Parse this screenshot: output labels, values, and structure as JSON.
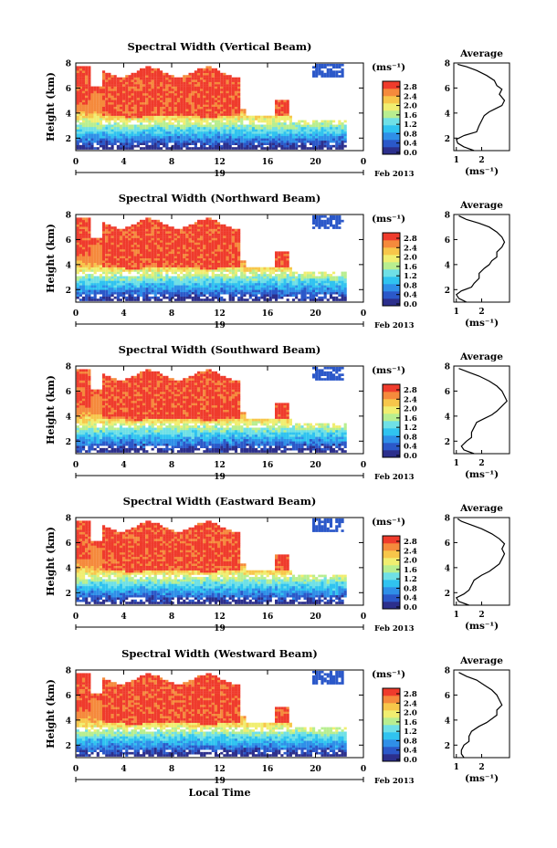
{
  "chart_data": {
    "type": "heatmap",
    "shared": {
      "ylabel": "Height (km)",
      "y_ticks": [
        "2",
        "4",
        "6",
        "8"
      ],
      "ylim": [
        1,
        8
      ],
      "x_ticks": [
        "0",
        "4",
        "8",
        "12",
        "16",
        "20",
        "0"
      ],
      "xlim": [
        0,
        24
      ],
      "day_label": "19",
      "date_label": "Feb 2013",
      "xlabel": "Local Time",
      "colorbar_unit": "(ms⁻¹)",
      "colorbar_ticks": [
        "2.8",
        "2.4",
        "2.0",
        "1.6",
        "1.2",
        "0.8",
        "0.4",
        "0.0"
      ],
      "colorbar_range": [
        0,
        3.0
      ],
      "colors": [
        "#2c2f8c",
        "#2b58c9",
        "#2f8fe8",
        "#30c3f0",
        "#6fe0e6",
        "#b8ee90",
        "#f0ee70",
        "#f7c64a",
        "#f58a3c",
        "#ef3b2c"
      ],
      "avg_title": "Average",
      "avg_unit": "(ms⁻¹)"
    },
    "panels": [
      {
        "title": "Spectral Width (Vertical Beam)",
        "avg_x_ticks": [
          "1",
          "2"
        ],
        "avg_profile": [
          [
            1.7,
            1.0
          ],
          [
            1.3,
            1.3
          ],
          [
            1.05,
            1.6
          ],
          [
            1.0,
            1.9
          ],
          [
            1.3,
            2.2
          ],
          [
            1.8,
            2.5
          ],
          [
            1.9,
            3.0
          ],
          [
            2.0,
            3.4
          ],
          [
            2.1,
            3.8
          ],
          [
            2.3,
            4.1
          ],
          [
            2.5,
            4.3
          ],
          [
            2.8,
            4.6
          ],
          [
            2.9,
            5.0
          ],
          [
            2.7,
            5.5
          ],
          [
            2.8,
            5.9
          ],
          [
            2.6,
            6.2
          ],
          [
            2.5,
            6.6
          ],
          [
            2.2,
            7.0
          ],
          [
            1.8,
            7.4
          ],
          [
            1.4,
            7.7
          ],
          [
            1.05,
            7.9
          ]
        ]
      },
      {
        "title": "Spectral Width (Northward Beam)",
        "avg_x_ticks": [
          "1",
          "2"
        ],
        "avg_profile": [
          [
            1.4,
            1.0
          ],
          [
            1.1,
            1.3
          ],
          [
            1.0,
            1.6
          ],
          [
            1.2,
            1.9
          ],
          [
            1.6,
            2.2
          ],
          [
            1.7,
            2.5
          ],
          [
            1.9,
            2.9
          ],
          [
            1.9,
            3.3
          ],
          [
            2.1,
            3.7
          ],
          [
            2.3,
            4.0
          ],
          [
            2.4,
            4.3
          ],
          [
            2.6,
            4.6
          ],
          [
            2.6,
            5.0
          ],
          [
            2.8,
            5.4
          ],
          [
            2.9,
            5.8
          ],
          [
            2.8,
            6.2
          ],
          [
            2.6,
            6.6
          ],
          [
            2.3,
            7.0
          ],
          [
            1.9,
            7.3
          ],
          [
            1.4,
            7.6
          ],
          [
            1.1,
            7.9
          ]
        ]
      },
      {
        "title": "Spectral Width (Southward Beam)",
        "avg_x_ticks": [
          "1",
          "2"
        ],
        "avg_profile": [
          [
            1.7,
            1.0
          ],
          [
            1.3,
            1.3
          ],
          [
            1.2,
            1.6
          ],
          [
            1.4,
            2.0
          ],
          [
            1.6,
            2.3
          ],
          [
            1.6,
            2.7
          ],
          [
            1.7,
            3.1
          ],
          [
            1.8,
            3.5
          ],
          [
            2.1,
            3.8
          ],
          [
            2.4,
            4.1
          ],
          [
            2.6,
            4.4
          ],
          [
            2.8,
            4.8
          ],
          [
            3.0,
            5.2
          ],
          [
            2.9,
            5.6
          ],
          [
            2.8,
            6.0
          ],
          [
            2.6,
            6.4
          ],
          [
            2.3,
            6.8
          ],
          [
            1.9,
            7.2
          ],
          [
            1.5,
            7.5
          ],
          [
            1.1,
            7.8
          ]
        ]
      },
      {
        "title": "Spectral Width (Eastward Beam)",
        "avg_x_ticks": [
          "1",
          "2"
        ],
        "avg_profile": [
          [
            1.5,
            1.0
          ],
          [
            1.1,
            1.3
          ],
          [
            1.0,
            1.6
          ],
          [
            1.3,
            1.9
          ],
          [
            1.5,
            2.2
          ],
          [
            1.6,
            2.6
          ],
          [
            1.7,
            3.0
          ],
          [
            2.0,
            3.4
          ],
          [
            2.3,
            3.7
          ],
          [
            2.5,
            4.0
          ],
          [
            2.7,
            4.3
          ],
          [
            2.8,
            4.7
          ],
          [
            2.9,
            5.1
          ],
          [
            2.8,
            5.5
          ],
          [
            2.9,
            5.9
          ],
          [
            2.7,
            6.3
          ],
          [
            2.4,
            6.7
          ],
          [
            2.0,
            7.1
          ],
          [
            1.6,
            7.4
          ],
          [
            1.2,
            7.7
          ],
          [
            1.05,
            7.9
          ]
        ]
      },
      {
        "title": "Spectral Width (Westward Beam)",
        "avg_x_ticks": [
          "1",
          "2"
        ],
        "avg_profile": [
          [
            1.3,
            1.0
          ],
          [
            1.2,
            1.3
          ],
          [
            1.2,
            1.6
          ],
          [
            1.3,
            2.0
          ],
          [
            1.5,
            2.3
          ],
          [
            1.5,
            2.7
          ],
          [
            1.6,
            3.1
          ],
          [
            1.9,
            3.5
          ],
          [
            2.2,
            3.8
          ],
          [
            2.4,
            4.1
          ],
          [
            2.6,
            4.4
          ],
          [
            2.6,
            4.8
          ],
          [
            2.8,
            5.2
          ],
          [
            2.7,
            5.6
          ],
          [
            2.6,
            6.0
          ],
          [
            2.4,
            6.4
          ],
          [
            2.1,
            6.8
          ],
          [
            1.8,
            7.2
          ],
          [
            1.4,
            7.5
          ],
          [
            1.1,
            7.8
          ]
        ]
      }
    ]
  }
}
